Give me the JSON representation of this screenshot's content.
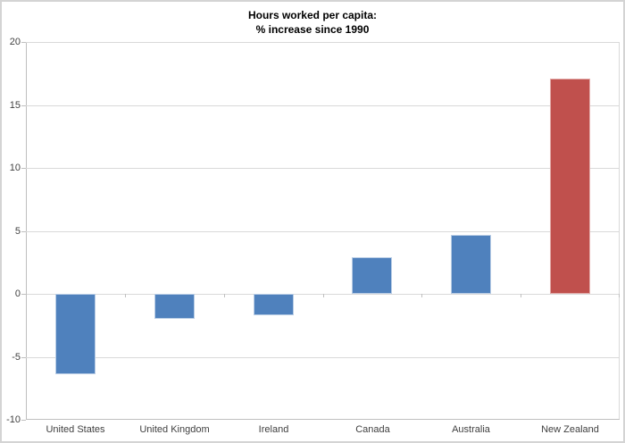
{
  "chart_data": {
    "type": "bar",
    "title_lines": [
      "Hours worked per capita:",
      "% increase since 1990"
    ],
    "categories": [
      "United States",
      "United Kingdom",
      "Ireland",
      "Canada",
      "Australia",
      "New Zealand"
    ],
    "values": [
      -6.4,
      -2.0,
      -1.7,
      2.9,
      4.7,
      17.1
    ],
    "bar_fill_colors": [
      "#4f81bd",
      "#4f81bd",
      "#4f81bd",
      "#4f81bd",
      "#4f81bd",
      "#c0504d"
    ],
    "bar_edge_colors": [
      "#b9cde5",
      "#b9cde5",
      "#b9cde5",
      "#b9cde5",
      "#b9cde5",
      "#e2aba9"
    ],
    "xlabel": "",
    "ylabel": "",
    "ylim": [
      -10,
      20
    ],
    "yticks": [
      20,
      15,
      10,
      5,
      0,
      -5,
      -10
    ],
    "grid": true,
    "legend": "none",
    "colors": {
      "gridline": "#d9d9d9",
      "axis": "#bfbfbf",
      "tick_label": "#404040",
      "title": "#000000",
      "background": "#ffffff"
    }
  }
}
